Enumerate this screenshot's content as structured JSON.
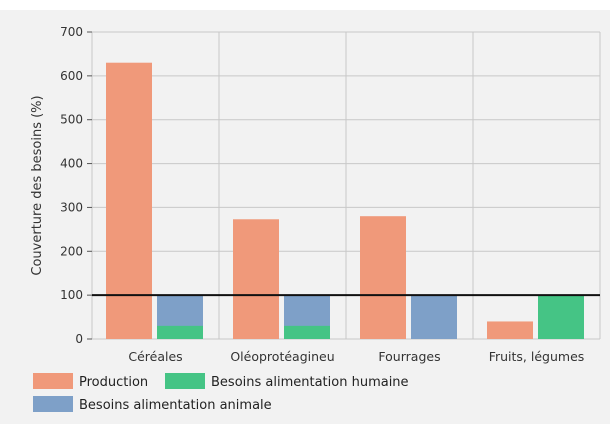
{
  "chart_data": {
    "type": "bar",
    "ylabel": "Couverture des besoins (%)",
    "xlabel": "",
    "ylim": [
      0,
      700
    ],
    "yticks": [
      0,
      100,
      200,
      300,
      400,
      500,
      600,
      700
    ],
    "reference_line": 100,
    "grid": true,
    "legend_position": "bottom-left",
    "categories": [
      "Céréales",
      "Oléoprotéagineu",
      "Fourrages",
      "Fruits, légumes"
    ],
    "series": [
      {
        "name": "Production",
        "color": "#f0997a",
        "values": [
          630,
          273,
          280,
          40
        ]
      },
      {
        "name": "Besoins alimentation humaine",
        "color": "#45c485",
        "values": [
          30,
          30,
          null,
          100
        ]
      },
      {
        "name": "Besoins alimentation animale",
        "color": "#7ea0c8",
        "values": [
          100,
          100,
          100,
          null
        ]
      }
    ]
  }
}
